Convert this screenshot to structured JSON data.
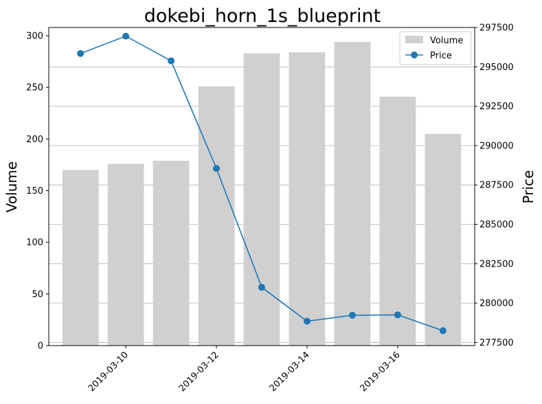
{
  "chart_data": {
    "type": "bar+line",
    "title": "dokebi_horn_1s_blueprint",
    "xlabel": "",
    "ylabel_left": "Volume",
    "ylabel_right": "Price",
    "x": [
      "2019-03-09",
      "2019-03-10",
      "2019-03-11",
      "2019-03-12",
      "2019-03-13",
      "2019-03-14",
      "2019-03-15",
      "2019-03-16",
      "2019-03-17"
    ],
    "x_tick_labels": [
      "2019-03-10",
      "2019-03-12",
      "2019-03-14",
      "2019-03-16"
    ],
    "series": [
      {
        "name": "Volume",
        "type": "bar",
        "axis": "left",
        "color": "#d0d0d0",
        "values": [
          170,
          176,
          179,
          251,
          283,
          284,
          294,
          241,
          205
        ]
      },
      {
        "name": "Price",
        "type": "line",
        "axis": "right",
        "color": "#1f77b4",
        "values": [
          295850,
          296950,
          295380,
          288550,
          281000,
          278850,
          279230,
          279250,
          278250
        ]
      }
    ],
    "ylim_left": [
      0,
      308
    ],
    "ylim_right": [
      277300,
      297500
    ],
    "yticks_left": [
      0,
      50,
      100,
      150,
      200,
      250,
      300
    ],
    "yticks_right": [
      277500,
      280000,
      282500,
      285000,
      287500,
      290000,
      292500,
      295000,
      297500
    ],
    "grid": "horizontal, right axis",
    "legend": "top-right"
  }
}
